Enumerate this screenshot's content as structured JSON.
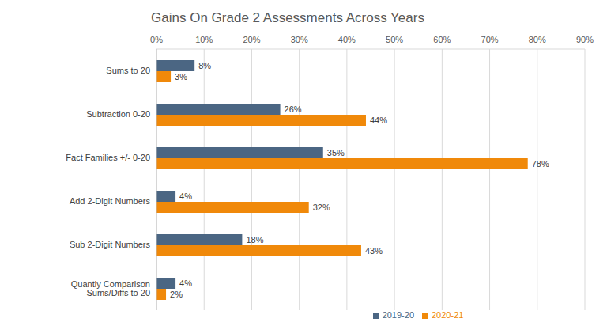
{
  "chart_data": {
    "type": "bar",
    "title": "Gains On Grade 2 Assessments Across Years",
    "orientation": "horizontal",
    "categories": [
      "Sums to 20",
      "Subtraction 0-20",
      "Fact Families +/- 0-20",
      "Add 2-Digit Numbers",
      "Sub 2-Digit Numbers",
      "Quantiy Comparison Sums/Diffs to 20"
    ],
    "series": [
      {
        "name": "2019-20",
        "color": "#4b6683",
        "values": [
          8,
          26,
          35,
          4,
          18,
          4
        ],
        "value_labels": [
          "8%",
          "26%",
          "35%",
          "4%",
          "18%",
          "4%"
        ]
      },
      {
        "name": "2020-21",
        "color": "#f0890a",
        "values": [
          3,
          44,
          78,
          32,
          43,
          2
        ],
        "value_labels": [
          "3%",
          "44%",
          "78%",
          "32%",
          "43%",
          "2%"
        ]
      }
    ],
    "xlim": [
      0,
      90
    ],
    "xticks": [
      {
        "value": 0,
        "label": "0%"
      },
      {
        "value": 10,
        "label": "10%"
      },
      {
        "value": 20,
        "label": "20%"
      },
      {
        "value": 30,
        "label": "30%"
      },
      {
        "value": 40,
        "label": "40%"
      },
      {
        "value": 50,
        "label": "50%"
      },
      {
        "value": 60,
        "label": "60%"
      },
      {
        "value": 70,
        "label": "70%"
      },
      {
        "value": 80,
        "label": "80%"
      },
      {
        "value": 90,
        "label": "90%"
      }
    ],
    "grid": true,
    "data_labels": true,
    "legend": "bottom"
  }
}
